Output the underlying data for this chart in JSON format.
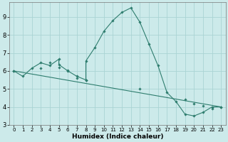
{
  "xlabel": "Humidex (Indice chaleur)",
  "ylabel": "",
  "background_color": "#cceaea",
  "grid_color": "#aad4d4",
  "line_color": "#2e7d6e",
  "xlim": [
    -0.5,
    23.5
  ],
  "ylim": [
    3.0,
    9.8
  ],
  "yticks": [
    3,
    4,
    5,
    6,
    7,
    8,
    9
  ],
  "xticks": [
    0,
    1,
    2,
    3,
    4,
    5,
    6,
    7,
    8,
    9,
    10,
    11,
    12,
    13,
    14,
    15,
    16,
    17,
    18,
    19,
    20,
    21,
    22,
    23
  ],
  "curve1_x": [
    0,
    1,
    2,
    3,
    4,
    5,
    5,
    6,
    7,
    8,
    8,
    9,
    10,
    11,
    12,
    13,
    14,
    15,
    16,
    17,
    18,
    19,
    20,
    21,
    22,
    23
  ],
  "curve1_y": [
    6.0,
    5.7,
    6.15,
    6.45,
    6.3,
    6.65,
    6.35,
    6.0,
    5.7,
    5.5,
    6.55,
    7.3,
    8.2,
    8.8,
    9.25,
    9.5,
    8.7,
    7.5,
    6.3,
    4.8,
    4.3,
    3.6,
    3.5,
    3.7,
    4.0,
    4.0
  ],
  "curve2_x": [
    0,
    23
  ],
  "curve2_y": [
    6.0,
    4.0
  ],
  "marker_x": [
    0,
    3,
    4,
    5,
    6,
    7,
    8,
    14,
    19,
    20,
    21,
    22,
    23
  ],
  "marker_y": [
    6.0,
    6.15,
    6.45,
    6.2,
    6.05,
    5.6,
    5.5,
    5.0,
    4.4,
    4.2,
    4.05,
    3.9,
    4.0
  ]
}
